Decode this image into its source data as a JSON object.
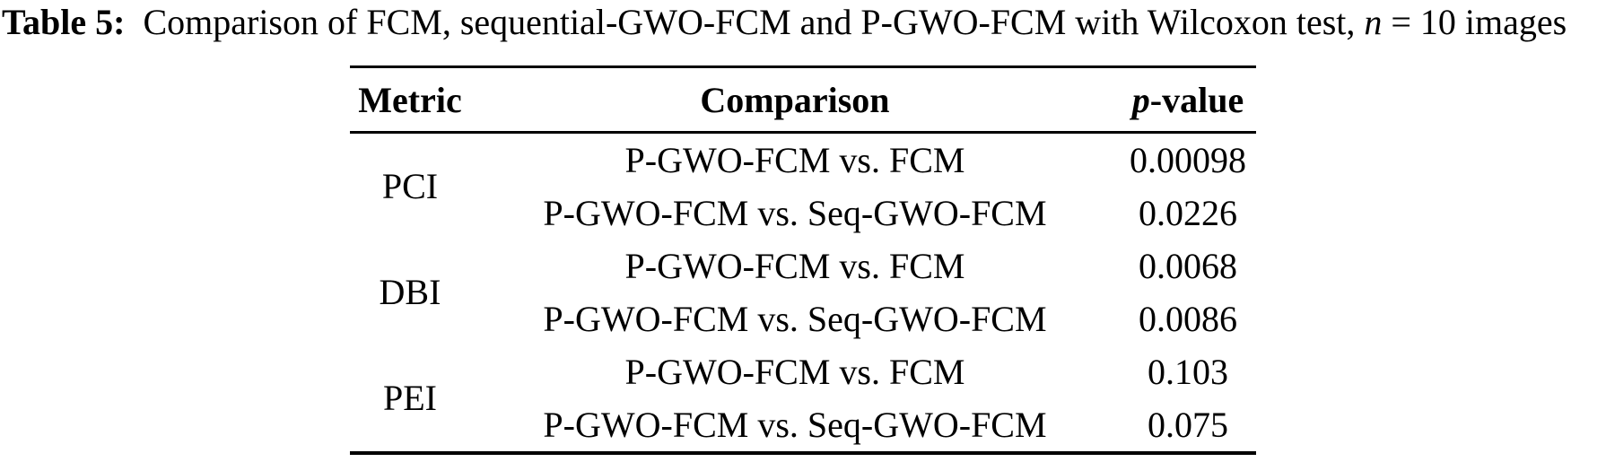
{
  "caption": {
    "label": "Table 5:",
    "body": "  Comparison of FCM, sequential-GWO-FCM and P-GWO-FCM with Wilcoxon test, ",
    "n_var": "n",
    "tail": " = 10 images"
  },
  "table": {
    "headers": {
      "metric": "Metric",
      "comparison": "Comparison",
      "p_italic": "p",
      "p_suffix": "-value"
    },
    "groups": [
      {
        "metric": "PCI",
        "rows": [
          {
            "comparison": "P-GWO-FCM vs. FCM",
            "p_value": "0.00098"
          },
          {
            "comparison": "P-GWO-FCM vs. Seq-GWO-FCM",
            "p_value": "0.0226"
          }
        ]
      },
      {
        "metric": "DBI",
        "rows": [
          {
            "comparison": "P-GWO-FCM vs. FCM",
            "p_value": "0.0068"
          },
          {
            "comparison": "P-GWO-FCM vs. Seq-GWO-FCM",
            "p_value": "0.0086"
          }
        ]
      },
      {
        "metric": "PEI",
        "rows": [
          {
            "comparison": "P-GWO-FCM vs. FCM",
            "p_value": "0.103"
          },
          {
            "comparison": "P-GWO-FCM vs. Seq-GWO-FCM",
            "p_value": "0.075"
          }
        ]
      }
    ]
  },
  "colors": {
    "background": "#ffffff",
    "text": "#000000",
    "rule": "#000000"
  }
}
